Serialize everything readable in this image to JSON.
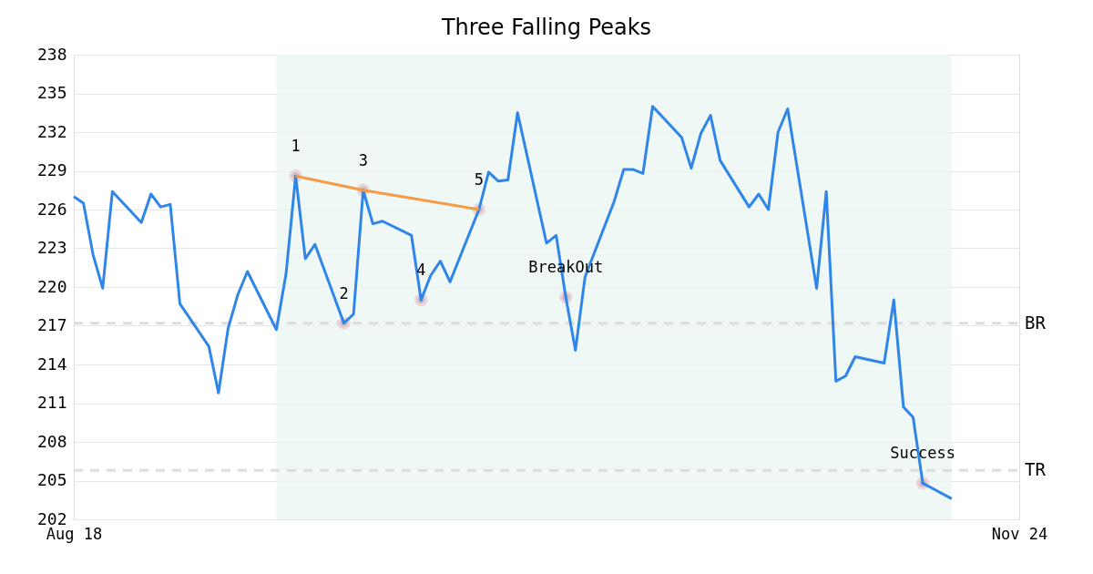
{
  "chart_data": {
    "type": "line",
    "title": "Three Falling Peaks",
    "xlim": [
      "--08-18",
      "--11-24"
    ],
    "xticks": [
      {
        "value": "--08-18",
        "label": "Aug 18"
      },
      {
        "value": "--11-24",
        "label": "Nov 24"
      }
    ],
    "ylim": [
      202,
      238
    ],
    "yticks": [
      202,
      205,
      208,
      211,
      214,
      217,
      220,
      223,
      226,
      229,
      232,
      235,
      238
    ],
    "grid": "y",
    "series": [
      {
        "color": "#2f86e8",
        "x": [
          "--08-18",
          "--08-19",
          "--08-20",
          "--08-21",
          "--08-22",
          "--08-25",
          "--08-26",
          "--08-27",
          "--08-28",
          "--08-29",
          "--09-01",
          "--09-02",
          "--09-03",
          "--09-04",
          "--09-05",
          "--09-08",
          "--09-09",
          "--09-10",
          "--09-11",
          "--09-12",
          "--09-15",
          "--09-16",
          "--09-17",
          "--09-18",
          "--09-19",
          "--09-22",
          "--09-23",
          "--09-24",
          "--09-25",
          "--09-26",
          "--09-29",
          "--09-30",
          "--10-01",
          "--10-02",
          "--10-03",
          "--10-06",
          "--10-07",
          "--10-08",
          "--10-09",
          "--10-10",
          "--10-13",
          "--10-14",
          "--10-15",
          "--10-16",
          "--10-17",
          "--10-20",
          "--10-21",
          "--10-22",
          "--10-23",
          "--10-24",
          "--10-27",
          "--10-28",
          "--10-29",
          "--10-30",
          "--10-31",
          "--11-03",
          "--11-04",
          "--11-05",
          "--11-06",
          "--11-07",
          "--11-10",
          "--11-11",
          "--11-12",
          "--11-13",
          "--11-14",
          "--11-17"
        ],
        "values": [
          227.0,
          226.5,
          222.5,
          219.9,
          227.4,
          225.0,
          227.2,
          226.2,
          226.4,
          218.7,
          215.4,
          211.8,
          216.8,
          219.4,
          221.2,
          216.7,
          221.0,
          228.6,
          222.2,
          223.3,
          217.2,
          217.9,
          227.5,
          224.9,
          225.1,
          224.0,
          219.0,
          220.9,
          222.0,
          220.4,
          226.0,
          228.9,
          228.2,
          228.3,
          233.5,
          223.4,
          224.0,
          219.2,
          215.1,
          220.8,
          226.6,
          229.1,
          229.1,
          228.8,
          234.0,
          231.6,
          229.2,
          231.9,
          233.3,
          229.8,
          226.2,
          227.2,
          226.0,
          232.0,
          233.8,
          219.9,
          227.4,
          212.7,
          213.1,
          214.6,
          214.1,
          219.0,
          210.7,
          209.9,
          204.8,
          203.6
        ]
      },
      {
        "type": "line",
        "color": "#f59a45",
        "x": [
          "--09-10",
          "--09-17",
          "--09-29"
        ],
        "values": [
          228.6,
          227.5,
          226.0
        ]
      },
      {
        "type": "scatter",
        "color": "#000000",
        "marker": "circle",
        "x": [
          "--09-10",
          "--09-15",
          "--09-17",
          "--09-23",
          "--09-29",
          "--10-08",
          "--11-14"
        ],
        "values": [
          228.6,
          217.2,
          227.5,
          219.0,
          226.0,
          219.2,
          204.8
        ]
      }
    ],
    "annotations": [
      {
        "text": "1",
        "x": "--09-10",
        "y": 228.6
      },
      {
        "text": "2",
        "x": "--09-15",
        "y": 217.2
      },
      {
        "text": "3",
        "x": "--09-17",
        "y": 227.5
      },
      {
        "text": "4",
        "x": "--09-23",
        "y": 219.0
      },
      {
        "text": "5",
        "x": "--09-29",
        "y": 226.0
      },
      {
        "text": "BreakOut",
        "x": "--10-08",
        "y": 219.2
      },
      {
        "text": "Success",
        "x": "--11-14",
        "y": 204.8
      }
    ],
    "ref_lines": [
      {
        "axis": "y",
        "value": 217.2,
        "label": "BR",
        "color": "#dddddd",
        "line_style": "dashed"
      },
      {
        "axis": "y",
        "value": 205.8,
        "label": "TR",
        "color": "#dddddd",
        "line_style": "dashed"
      }
    ],
    "bands": [
      {
        "axis": "x",
        "from": "--09-08",
        "to": "--11-17",
        "color": "#e9f6f1"
      }
    ]
  }
}
